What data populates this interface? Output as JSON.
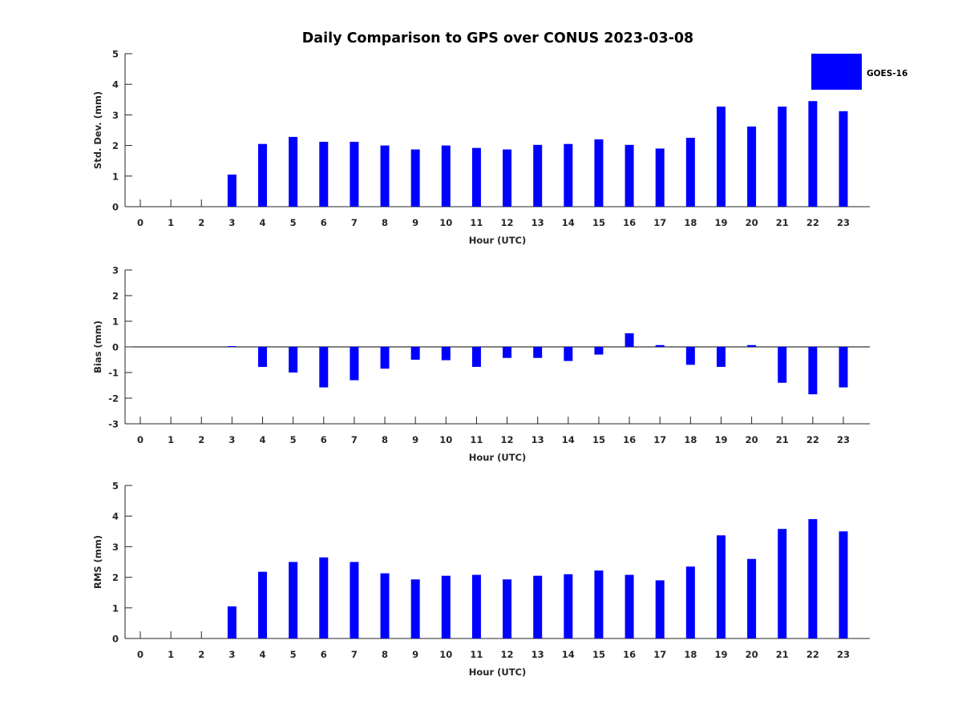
{
  "chart_data": {
    "title": "Daily Comparison to GPS over CONUS 2023-03-08",
    "type": "bar",
    "legend": {
      "position": "top-right",
      "entries": [
        "GOES-16"
      ]
    },
    "colors": {
      "bar": "#0000ff",
      "axis": "#262626",
      "title": "#000000"
    },
    "panels": [
      {
        "id": "std-dev",
        "type": "bar",
        "ylabel": "Std. Dev. (mm)",
        "xlabel": "Hour (UTC)",
        "ylim": [
          0,
          5
        ],
        "yticks": [
          "0",
          "1",
          "2",
          "3",
          "4",
          "5"
        ],
        "categories": [
          "0",
          "1",
          "2",
          "3",
          "4",
          "5",
          "6",
          "7",
          "8",
          "9",
          "10",
          "11",
          "12",
          "13",
          "14",
          "15",
          "16",
          "17",
          "18",
          "19",
          "20",
          "21",
          "22",
          "23"
        ],
        "series": [
          {
            "name": "GOES-16",
            "values": [
              0,
              0,
              0,
              1.05,
              2.05,
              2.28,
              2.12,
              2.12,
              2.0,
              1.87,
              2.0,
              1.92,
              1.87,
              2.02,
              2.05,
              2.2,
              2.02,
              1.9,
              2.25,
              3.27,
              2.62,
              3.27,
              3.45,
              3.12
            ]
          }
        ]
      },
      {
        "id": "bias",
        "type": "bar",
        "ylabel": "Bias (mm)",
        "xlabel": "Hour (UTC)",
        "ylim": [
          -3,
          3
        ],
        "yticks": [
          "-3",
          "-2",
          "-1",
          "0",
          "1",
          "2",
          "3"
        ],
        "categories": [
          "0",
          "1",
          "2",
          "3",
          "4",
          "5",
          "6",
          "7",
          "8",
          "9",
          "10",
          "11",
          "12",
          "13",
          "14",
          "15",
          "16",
          "17",
          "18",
          "19",
          "20",
          "21",
          "22",
          "23"
        ],
        "series": [
          {
            "name": "GOES-16",
            "values": [
              0,
              0,
              0,
              0.03,
              -0.78,
              -1.0,
              -1.58,
              -1.3,
              -0.85,
              -0.5,
              -0.52,
              -0.78,
              -0.43,
              -0.43,
              -0.55,
              -0.3,
              0.53,
              0.07,
              -0.7,
              -0.78,
              0.07,
              -1.4,
              -1.85,
              -1.58
            ]
          }
        ]
      },
      {
        "id": "rms",
        "type": "bar",
        "ylabel": "RMS (mm)",
        "xlabel": "Hour (UTC)",
        "ylim": [
          0,
          5
        ],
        "yticks": [
          "0",
          "1",
          "2",
          "3",
          "4",
          "5"
        ],
        "categories": [
          "0",
          "1",
          "2",
          "3",
          "4",
          "5",
          "6",
          "7",
          "8",
          "9",
          "10",
          "11",
          "12",
          "13",
          "14",
          "15",
          "16",
          "17",
          "18",
          "19",
          "20",
          "21",
          "22",
          "23"
        ],
        "series": [
          {
            "name": "GOES-16",
            "values": [
              0,
              0,
              0,
              1.05,
              2.18,
              2.5,
              2.65,
              2.5,
              2.13,
              1.93,
              2.05,
              2.08,
              1.93,
              2.05,
              2.1,
              2.22,
              2.08,
              1.9,
              2.35,
              3.37,
              2.6,
              3.58,
              3.9,
              3.5
            ]
          }
        ]
      }
    ]
  }
}
